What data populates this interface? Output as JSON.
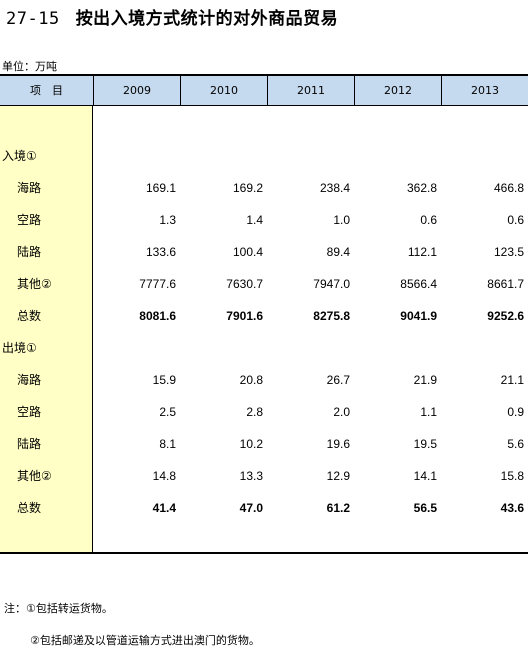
{
  "title": {
    "number": "27-15",
    "text": "按出入境方式统计的对外商品贸易"
  },
  "unit": "单位：万吨",
  "header": {
    "item": "项　目",
    "years": [
      "2009",
      "2010",
      "2011",
      "2012",
      "2013"
    ]
  },
  "sections": [
    {
      "label": "入境①",
      "rows": [
        {
          "label": "海路",
          "values": [
            "169.1",
            "169.2",
            "238.4",
            "362.8",
            "466.8"
          ]
        },
        {
          "label": "空路",
          "values": [
            "1.3",
            "1.4",
            "1.0",
            "0.6",
            "0.6"
          ]
        },
        {
          "label": "陆路",
          "values": [
            "133.6",
            "100.4",
            "89.4",
            "112.1",
            "123.5"
          ]
        },
        {
          "label": "其他②",
          "values": [
            "7777.6",
            "7630.7",
            "7947.0",
            "8566.4",
            "8661.7"
          ]
        },
        {
          "label": "总数",
          "bold": true,
          "values": [
            "8081.6",
            "7901.6",
            "8275.8",
            "9041.9",
            "9252.6"
          ]
        }
      ]
    },
    {
      "label": "出境①",
      "rows": [
        {
          "label": "海路",
          "values": [
            "15.9",
            "20.8",
            "26.7",
            "21.9",
            "21.1"
          ]
        },
        {
          "label": "空路",
          "values": [
            "2.5",
            "2.8",
            "2.0",
            "1.1",
            "0.9"
          ]
        },
        {
          "label": "陆路",
          "values": [
            "8.1",
            "10.2",
            "19.6",
            "19.5",
            "5.6"
          ]
        },
        {
          "label": "其他②",
          "values": [
            "14.8",
            "13.3",
            "12.9",
            "14.1",
            "15.8"
          ]
        },
        {
          "label": "总数",
          "bold": true,
          "values": [
            "41.4",
            "47.0",
            "61.2",
            "56.5",
            "43.6"
          ]
        }
      ]
    }
  ],
  "notes": [
    "注：①包括转运货物。",
    "②包括邮递及以管道运输方式进出澳门的货物。"
  ]
}
